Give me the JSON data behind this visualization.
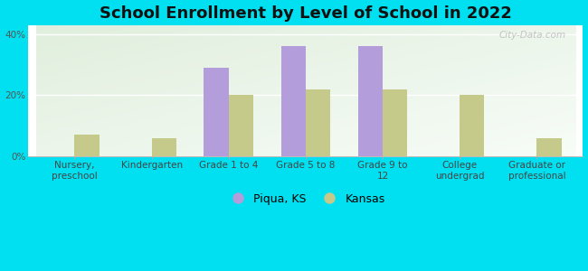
{
  "title": "School Enrollment by Level of School in 2022",
  "categories": [
    "Nursery,\npreschool",
    "Kindergarten",
    "Grade 1 to 4",
    "Grade 5 to 8",
    "Grade 9 to\n12",
    "College\nundergrad",
    "Graduate or\nprofessional"
  ],
  "piqua_values": [
    0,
    0,
    29,
    36,
    36,
    0,
    0
  ],
  "kansas_values": [
    7,
    6,
    20,
    22,
    22,
    20,
    6
  ],
  "piqua_color": "#b39ddb",
  "kansas_color": "#c5c98a",
  "background_outer": "#00e0f0",
  "title_fontsize": 13,
  "tick_fontsize": 7.5,
  "legend_fontsize": 9,
  "ylim": [
    0,
    43
  ],
  "yticks": [
    0,
    20,
    40
  ],
  "ytick_labels": [
    "0%",
    "20%",
    "40%"
  ],
  "legend_labels": [
    "Piqua, KS",
    "Kansas"
  ],
  "watermark": "City-Data.com",
  "bar_width": 0.32
}
